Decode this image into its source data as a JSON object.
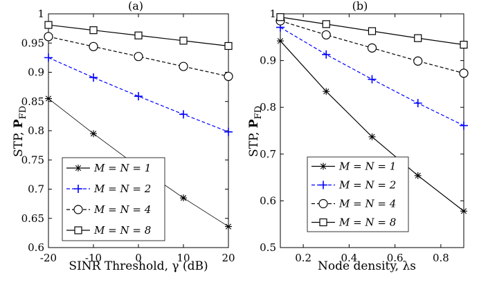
{
  "chart_data": [
    {
      "type": "line",
      "title": "(a)",
      "xlabel": "SINR Threshold, γ (dB)",
      "ylabel": "STP, PFD",
      "ylabel_main": "STP, ",
      "ylabel_bold": "P",
      "ylabel_sub": "FD",
      "x": [
        -20,
        -10,
        0,
        10,
        20
      ],
      "x_ticks": [
        -20,
        -10,
        0,
        10,
        20
      ],
      "x_tick_labels": [
        "-20",
        "-10",
        "0",
        "10",
        "20"
      ],
      "xlim": [
        -20,
        20
      ],
      "y_ticks": [
        0.6,
        0.65,
        0.7,
        0.75,
        0.8,
        0.85,
        0.9,
        0.95,
        1
      ],
      "y_tick_labels": [
        "0.6",
        "0.65",
        "0.7",
        "0.75",
        "0.8",
        "0.85",
        "0.9",
        "0.95",
        "1"
      ],
      "ylim": [
        0.6,
        1
      ],
      "grid": false,
      "legend_position": "bottom-left",
      "series": [
        {
          "name": "M = N = 1",
          "marker": "asterisk",
          "color": "#000000",
          "dash": "solid",
          "values": [
            0.855,
            0.795,
            0.738,
            0.685,
            0.636
          ]
        },
        {
          "name": "M = N = 2",
          "marker": "plus",
          "color": "#0000ff",
          "dash": "dashed",
          "values": [
            0.925,
            0.891,
            0.859,
            0.828,
            0.798
          ]
        },
        {
          "name": "M = N = 4",
          "marker": "circle",
          "color": "#000000",
          "dash": "dashed",
          "values": [
            0.961,
            0.944,
            0.927,
            0.91,
            0.893
          ]
        },
        {
          "name": "M = N = 8",
          "marker": "square",
          "color": "#000000",
          "dash": "solid",
          "values": [
            0.981,
            0.972,
            0.963,
            0.954,
            0.945
          ]
        }
      ]
    },
    {
      "type": "line",
      "title": "(b)",
      "xlabel": "Node density, λs",
      "ylabel": "STP, PFD",
      "ylabel_main": "STP, ",
      "ylabel_bold": "P",
      "ylabel_sub": "FD",
      "x": [
        0.1,
        0.3,
        0.5,
        0.7,
        0.9
      ],
      "x_ticks": [
        0.2,
        0.4,
        0.6,
        0.8
      ],
      "x_tick_labels": [
        "0.2",
        "0.4",
        "0.6",
        "0.8"
      ],
      "xlim": [
        0.1,
        0.9
      ],
      "y_ticks": [
        0.5,
        0.6,
        0.7,
        0.8,
        0.9,
        1
      ],
      "y_tick_labels": [
        "0.5",
        "0.6",
        "0.7",
        "0.8",
        "0.9",
        "1"
      ],
      "ylim": [
        0.5,
        1
      ],
      "grid": false,
      "legend_position": "bottom-left",
      "series": [
        {
          "name": "M = N = 1",
          "marker": "asterisk",
          "color": "#000000",
          "dash": "solid",
          "values": [
            0.942,
            0.834,
            0.737,
            0.654,
            0.578
          ]
        },
        {
          "name": "M = N = 2",
          "marker": "plus",
          "color": "#0000ff",
          "dash": "dashed",
          "values": [
            0.971,
            0.913,
            0.86,
            0.809,
            0.761
          ]
        },
        {
          "name": "M = N = 4",
          "marker": "circle",
          "color": "#000000",
          "dash": "dashed",
          "values": [
            0.985,
            0.955,
            0.927,
            0.899,
            0.873
          ]
        },
        {
          "name": "M = N = 8",
          "marker": "square",
          "color": "#000000",
          "dash": "solid",
          "values": [
            0.993,
            0.978,
            0.963,
            0.948,
            0.934
          ]
        }
      ]
    }
  ]
}
